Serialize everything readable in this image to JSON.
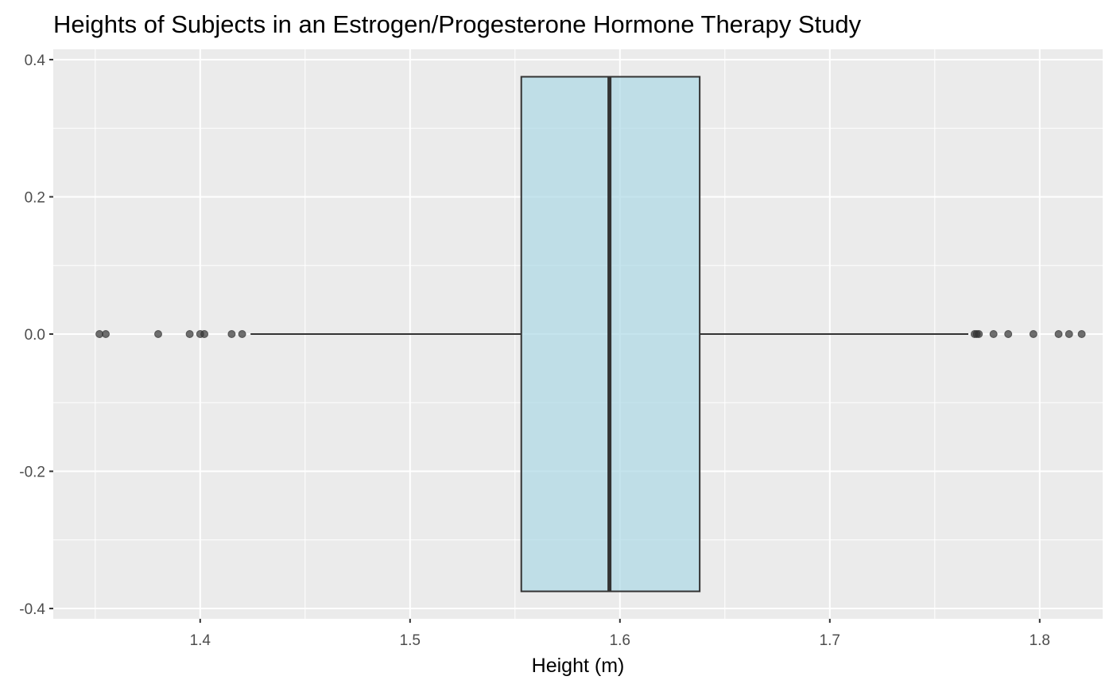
{
  "chart_data": {
    "type": "boxplot",
    "title": "Heights of Subjects in an Estrogen/Progesterone Hormone Therapy Study",
    "xlabel": "Height (m)",
    "ylabel": "",
    "xlim": [
      1.33,
      1.83
    ],
    "ylim": [
      -0.415,
      0.415
    ],
    "x_ticks": [
      {
        "value": 1.4,
        "label": "1.4"
      },
      {
        "value": 1.5,
        "label": "1.5"
      },
      {
        "value": 1.6,
        "label": "1.6"
      },
      {
        "value": 1.7,
        "label": "1.7"
      },
      {
        "value": 1.8,
        "label": "1.8"
      }
    ],
    "y_ticks": [
      {
        "value": 0.4,
        "label": "0.4"
      },
      {
        "value": 0.2,
        "label": "0.2"
      },
      {
        "value": 0.0,
        "label": "0.0"
      },
      {
        "value": -0.2,
        "label": "-0.2"
      },
      {
        "value": -0.4,
        "label": "-0.4"
      }
    ],
    "box": {
      "q1": 1.553,
      "median": 1.595,
      "q3": 1.638,
      "whisker_low": 1.424,
      "whisker_high": 1.766,
      "y_center": 0.0,
      "y_low": -0.375,
      "y_high": 0.375
    },
    "outliers": [
      1.352,
      1.355,
      1.38,
      1.395,
      1.4,
      1.402,
      1.415,
      1.42,
      1.769,
      1.77,
      1.771,
      1.778,
      1.785,
      1.797,
      1.809,
      1.814,
      1.82
    ],
    "grid": true,
    "colors": {
      "panel": "#ebebeb",
      "grid": "#ffffff",
      "box_fill": "#add8e6",
      "box_stroke": "#333333",
      "outlier": "#333333"
    }
  }
}
